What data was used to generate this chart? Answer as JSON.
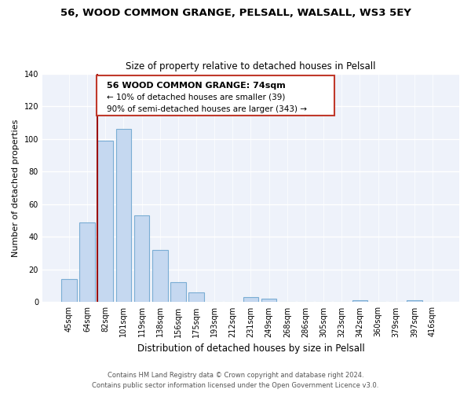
{
  "title": "56, WOOD COMMON GRANGE, PELSALL, WALSALL, WS3 5EY",
  "subtitle": "Size of property relative to detached houses in Pelsall",
  "xlabel": "Distribution of detached houses by size in Pelsall",
  "ylabel": "Number of detached properties",
  "bar_color": "#c5d8f0",
  "bar_edge_color": "#7aadd4",
  "categories": [
    "45sqm",
    "64sqm",
    "82sqm",
    "101sqm",
    "119sqm",
    "138sqm",
    "156sqm",
    "175sqm",
    "193sqm",
    "212sqm",
    "231sqm",
    "249sqm",
    "268sqm",
    "286sqm",
    "305sqm",
    "323sqm",
    "342sqm",
    "360sqm",
    "379sqm",
    "397sqm",
    "416sqm"
  ],
  "values": [
    14,
    49,
    99,
    106,
    53,
    32,
    12,
    6,
    0,
    0,
    3,
    2,
    0,
    0,
    0,
    0,
    1,
    0,
    0,
    1,
    0
  ],
  "ylim": [
    0,
    140
  ],
  "yticks": [
    0,
    20,
    40,
    60,
    80,
    100,
    120,
    140
  ],
  "marker_label": "56 WOOD COMMON GRANGE: 74sqm",
  "annotation_line1": "← 10% of detached houses are smaller (39)",
  "annotation_line2": "90% of semi-detached houses are larger (343) →",
  "vline_color": "#9b1010",
  "box_edge_color": "#c0392b",
  "footer_line1": "Contains HM Land Registry data © Crown copyright and database right 2024.",
  "footer_line2": "Contains public sector information licensed under the Open Government Licence v3.0.",
  "background_color": "#eef2fa"
}
